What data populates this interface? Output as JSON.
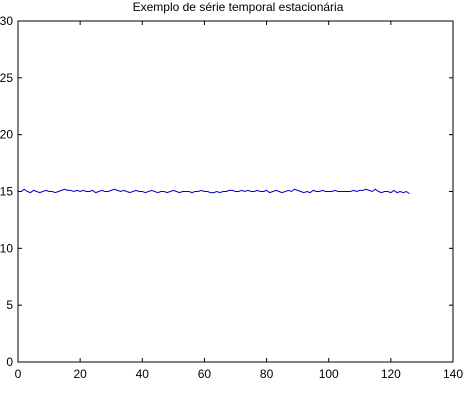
{
  "chart_data": {
    "type": "line",
    "title": "Exemplo de série temporal estacionária",
    "xlabel": "",
    "ylabel": "",
    "xlim": [
      0,
      140
    ],
    "ylim": [
      0,
      30
    ],
    "xticks": [
      0,
      20,
      40,
      60,
      80,
      100,
      120,
      140
    ],
    "yticks": [
      0,
      5,
      10,
      15,
      20,
      25,
      30
    ],
    "grid": false,
    "line_color": "#0000cc",
    "series": [
      {
        "x": [
          1,
          2,
          3,
          4,
          5,
          6,
          7,
          8,
          9,
          10,
          11,
          12,
          13,
          14,
          15,
          16,
          17,
          18,
          19,
          20,
          21,
          22,
          23,
          24,
          25,
          26,
          27,
          28,
          29,
          30,
          31,
          32,
          33,
          34,
          35,
          36,
          37,
          38,
          39,
          40,
          41,
          42,
          43,
          44,
          45,
          46,
          47,
          48,
          49,
          50,
          51,
          52,
          53,
          54,
          55,
          56,
          57,
          58,
          59,
          60,
          61,
          62,
          63,
          64,
          65,
          66,
          67,
          68,
          69,
          70,
          71,
          72,
          73,
          74,
          75,
          76,
          77,
          78,
          79,
          80,
          81,
          82,
          83,
          84,
          85,
          86,
          87,
          88,
          89,
          90,
          91,
          92,
          93,
          94,
          95,
          96,
          97,
          98,
          99,
          100,
          101,
          102,
          103,
          104,
          105,
          106,
          107,
          108,
          109,
          110,
          111,
          112,
          113,
          114,
          115,
          116,
          117,
          118,
          119,
          120,
          121,
          122,
          123,
          124,
          125,
          126
        ],
        "y": [
          15.0,
          15.2,
          15.0,
          14.9,
          15.1,
          15.0,
          14.9,
          15.0,
          15.1,
          15.0,
          15.0,
          14.9,
          15.0,
          15.1,
          15.2,
          15.1,
          15.1,
          15.0,
          15.1,
          15.0,
          15.1,
          15.0,
          15.0,
          15.1,
          14.9,
          15.0,
          15.1,
          15.0,
          15.0,
          15.1,
          15.2,
          15.1,
          15.0,
          15.1,
          15.0,
          14.9,
          15.0,
          15.1,
          15.0,
          15.0,
          14.9,
          15.0,
          15.1,
          15.0,
          14.9,
          15.0,
          15.0,
          14.9,
          15.0,
          15.1,
          15.0,
          14.9,
          15.0,
          15.0,
          15.0,
          14.9,
          15.0,
          15.0,
          15.1,
          15.0,
          15.0,
          14.9,
          14.9,
          15.0,
          14.9,
          15.0,
          15.0,
          15.1,
          15.1,
          15.0,
          15.0,
          15.1,
          15.0,
          15.1,
          15.0,
          15.0,
          15.1,
          15.0,
          15.0,
          15.1,
          14.9,
          15.0,
          15.1,
          15.0,
          14.9,
          15.0,
          15.1,
          15.0,
          15.2,
          15.1,
          15.0,
          14.9,
          15.0,
          14.9,
          15.1,
          15.0,
          15.0,
          15.1,
          15.0,
          15.0,
          15.0,
          15.1,
          15.0,
          15.0,
          15.0,
          15.0,
          15.0,
          15.1,
          15.0,
          15.1,
          15.1,
          15.2,
          15.1,
          15.0,
          15.2,
          15.0,
          14.9,
          15.0,
          15.0,
          14.9,
          15.1,
          14.9,
          15.0,
          14.9,
          15.0,
          14.8
        ]
      }
    ]
  }
}
